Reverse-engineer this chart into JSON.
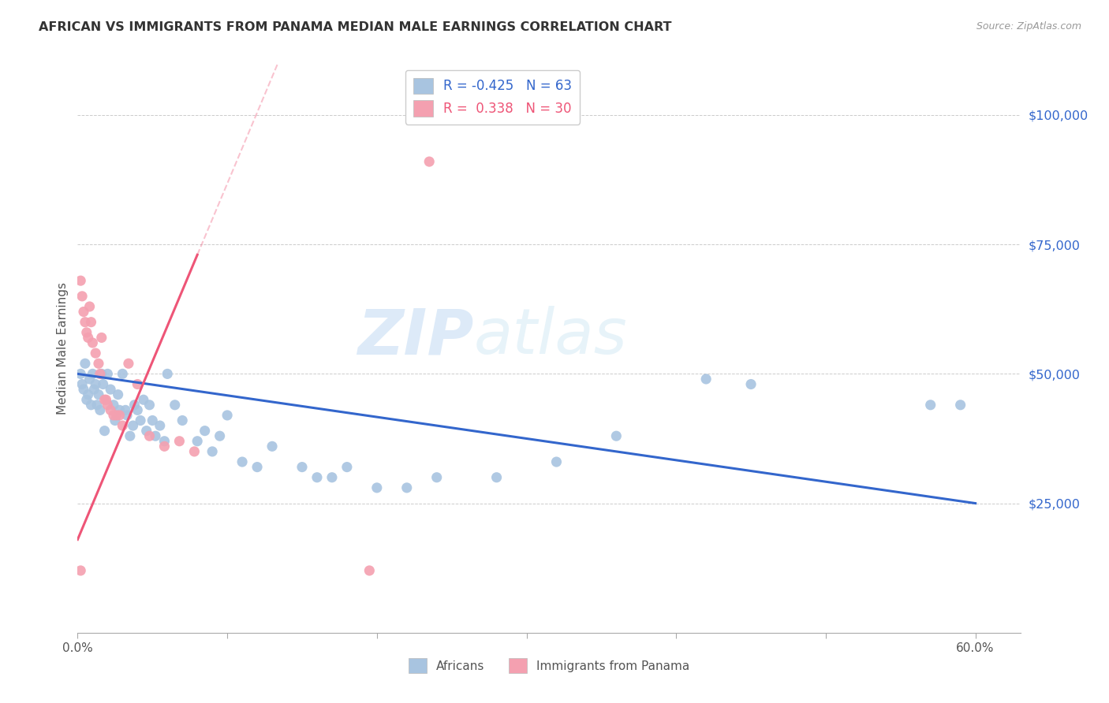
{
  "title": "AFRICAN VS IMMIGRANTS FROM PANAMA MEDIAN MALE EARNINGS CORRELATION CHART",
  "source": "Source: ZipAtlas.com",
  "ylabel": "Median Male Earnings",
  "xlim": [
    0.0,
    0.63
  ],
  "ylim": [
    0,
    110000
  ],
  "watermark_left": "ZIP",
  "watermark_right": "atlas",
  "legend_blue_R": "-0.425",
  "legend_blue_N": "63",
  "legend_pink_R": " 0.338",
  "legend_pink_N": "30",
  "blue_color": "#A8C4E0",
  "pink_color": "#F4A0B0",
  "blue_line_color": "#3366CC",
  "pink_line_color": "#EE5577",
  "ytick_color": "#3366CC",
  "background_color": "#FFFFFF",
  "grid_color": "#CCCCCC",
  "blue_scatter": [
    [
      0.002,
      50000
    ],
    [
      0.003,
      48000
    ],
    [
      0.004,
      47000
    ],
    [
      0.005,
      52000
    ],
    [
      0.006,
      45000
    ],
    [
      0.007,
      46000
    ],
    [
      0.008,
      49000
    ],
    [
      0.009,
      44000
    ],
    [
      0.01,
      50000
    ],
    [
      0.011,
      47000
    ],
    [
      0.012,
      48000
    ],
    [
      0.013,
      44000
    ],
    [
      0.014,
      46000
    ],
    [
      0.015,
      43000
    ],
    [
      0.016,
      50000
    ],
    [
      0.017,
      48000
    ],
    [
      0.018,
      39000
    ],
    [
      0.02,
      50000
    ],
    [
      0.022,
      47000
    ],
    [
      0.024,
      44000
    ],
    [
      0.025,
      41000
    ],
    [
      0.027,
      46000
    ],
    [
      0.028,
      43000
    ],
    [
      0.03,
      50000
    ],
    [
      0.032,
      43000
    ],
    [
      0.033,
      42000
    ],
    [
      0.035,
      38000
    ],
    [
      0.037,
      40000
    ],
    [
      0.038,
      44000
    ],
    [
      0.04,
      43000
    ],
    [
      0.042,
      41000
    ],
    [
      0.044,
      45000
    ],
    [
      0.046,
      39000
    ],
    [
      0.048,
      44000
    ],
    [
      0.05,
      41000
    ],
    [
      0.052,
      38000
    ],
    [
      0.055,
      40000
    ],
    [
      0.058,
      37000
    ],
    [
      0.06,
      50000
    ],
    [
      0.065,
      44000
    ],
    [
      0.07,
      41000
    ],
    [
      0.08,
      37000
    ],
    [
      0.085,
      39000
    ],
    [
      0.09,
      35000
    ],
    [
      0.095,
      38000
    ],
    [
      0.1,
      42000
    ],
    [
      0.11,
      33000
    ],
    [
      0.12,
      32000
    ],
    [
      0.13,
      36000
    ],
    [
      0.15,
      32000
    ],
    [
      0.16,
      30000
    ],
    [
      0.17,
      30000
    ],
    [
      0.18,
      32000
    ],
    [
      0.2,
      28000
    ],
    [
      0.22,
      28000
    ],
    [
      0.24,
      30000
    ],
    [
      0.28,
      30000
    ],
    [
      0.32,
      33000
    ],
    [
      0.36,
      38000
    ],
    [
      0.42,
      49000
    ],
    [
      0.45,
      48000
    ],
    [
      0.57,
      44000
    ],
    [
      0.59,
      44000
    ]
  ],
  "pink_scatter": [
    [
      0.002,
      68000
    ],
    [
      0.003,
      65000
    ],
    [
      0.004,
      62000
    ],
    [
      0.005,
      60000
    ],
    [
      0.006,
      58000
    ],
    [
      0.007,
      57000
    ],
    [
      0.008,
      63000
    ],
    [
      0.009,
      60000
    ],
    [
      0.01,
      56000
    ],
    [
      0.012,
      54000
    ],
    [
      0.014,
      52000
    ],
    [
      0.015,
      50000
    ],
    [
      0.016,
      57000
    ],
    [
      0.018,
      45000
    ],
    [
      0.019,
      45000
    ],
    [
      0.02,
      44000
    ],
    [
      0.022,
      43000
    ],
    [
      0.024,
      42000
    ],
    [
      0.026,
      42000
    ],
    [
      0.028,
      42000
    ],
    [
      0.03,
      40000
    ],
    [
      0.034,
      52000
    ],
    [
      0.04,
      48000
    ],
    [
      0.048,
      38000
    ],
    [
      0.058,
      36000
    ],
    [
      0.068,
      37000
    ],
    [
      0.078,
      35000
    ],
    [
      0.002,
      12000
    ],
    [
      0.195,
      12000
    ],
    [
      0.235,
      91000
    ]
  ]
}
